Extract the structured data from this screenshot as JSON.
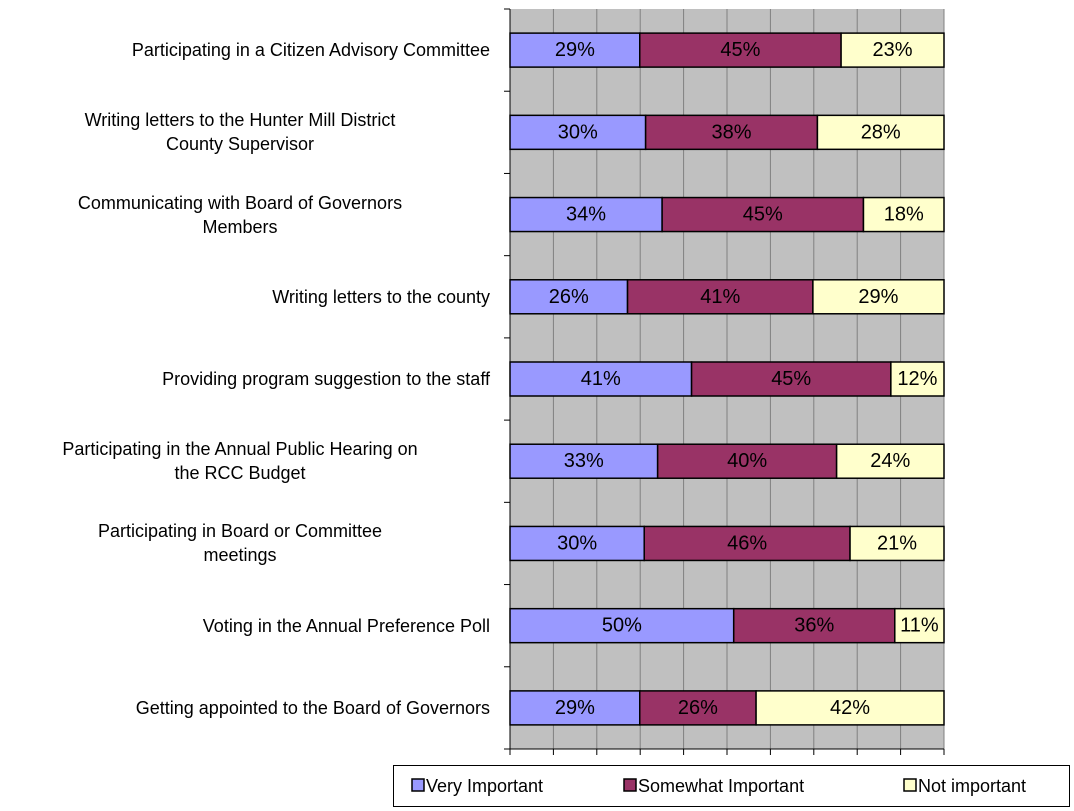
{
  "chart_data": {
    "type": "bar",
    "orientation": "horizontal",
    "stacked": "percent",
    "categories": [
      "Participating in a Citizen Advisory Committee",
      "Writing letters to the Hunter Mill District\nCounty Supervisor",
      "Communicating with Board of Governors\nMembers",
      "Writing letters to the county",
      "Providing program suggestion to the staff",
      "Participating in the Annual Public Hearing on\nthe RCC Budget",
      "Participating in Board or Committee\nmeetings",
      "Voting in the Annual Preference Poll",
      "Getting appointed to the Board of Governors"
    ],
    "series": [
      {
        "name": "Very Important",
        "color": "#9999ff",
        "values": [
          29,
          30,
          34,
          26,
          41,
          33,
          30,
          50,
          29
        ],
        "value_labels": [
          "29%",
          "30%",
          "34%",
          "26%",
          "41%",
          "33%",
          "30%",
          "50%",
          "29%"
        ]
      },
      {
        "name": "Somewhat Important",
        "color": "#993366",
        "values": [
          45,
          38,
          45,
          41,
          45,
          40,
          46,
          36,
          26
        ],
        "value_labels": [
          "45%",
          "38%",
          "45%",
          "41%",
          "45%",
          "40%",
          "46%",
          "36%",
          "26%"
        ]
      },
      {
        "name": "Not important",
        "color": "#ffffcc",
        "values": [
          23,
          28,
          18,
          29,
          12,
          24,
          21,
          11,
          42
        ],
        "value_labels": [
          "23%",
          "28%",
          "18%",
          "29%",
          "12%",
          "24%",
          "21%",
          "11%",
          "42%"
        ]
      }
    ],
    "xticks": [
      0,
      10,
      20,
      30,
      40,
      50,
      60,
      70,
      80,
      90,
      100
    ],
    "xlim": [
      0,
      100
    ],
    "grid": true,
    "legend": "bottom"
  }
}
